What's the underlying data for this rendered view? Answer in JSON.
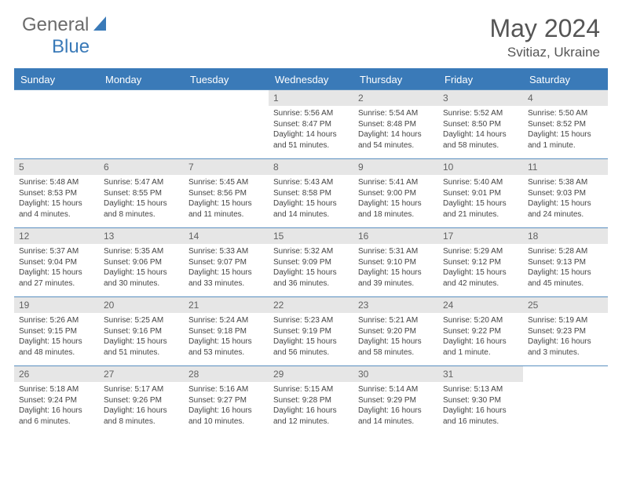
{
  "logo": {
    "text1": "General",
    "text2": "Blue",
    "color1": "#6b6b6b",
    "color2": "#3a7ab8"
  },
  "title": "May 2024",
  "location": "Svitiaz, Ukraine",
  "colors": {
    "header_bg": "#3a7ab8",
    "header_text": "#ffffff",
    "daybar_bg": "#e6e6e6",
    "daybar_text": "#626262",
    "body_text": "#444444",
    "rule": "#5a8fc0"
  },
  "weekdays": [
    "Sunday",
    "Monday",
    "Tuesday",
    "Wednesday",
    "Thursday",
    "Friday",
    "Saturday"
  ],
  "first_weekday_index": 3,
  "days": [
    {
      "n": 1,
      "sunrise": "5:56 AM",
      "sunset": "8:47 PM",
      "daylight": "14 hours and 51 minutes."
    },
    {
      "n": 2,
      "sunrise": "5:54 AM",
      "sunset": "8:48 PM",
      "daylight": "14 hours and 54 minutes."
    },
    {
      "n": 3,
      "sunrise": "5:52 AM",
      "sunset": "8:50 PM",
      "daylight": "14 hours and 58 minutes."
    },
    {
      "n": 4,
      "sunrise": "5:50 AM",
      "sunset": "8:52 PM",
      "daylight": "15 hours and 1 minute."
    },
    {
      "n": 5,
      "sunrise": "5:48 AM",
      "sunset": "8:53 PM",
      "daylight": "15 hours and 4 minutes."
    },
    {
      "n": 6,
      "sunrise": "5:47 AM",
      "sunset": "8:55 PM",
      "daylight": "15 hours and 8 minutes."
    },
    {
      "n": 7,
      "sunrise": "5:45 AM",
      "sunset": "8:56 PM",
      "daylight": "15 hours and 11 minutes."
    },
    {
      "n": 8,
      "sunrise": "5:43 AM",
      "sunset": "8:58 PM",
      "daylight": "15 hours and 14 minutes."
    },
    {
      "n": 9,
      "sunrise": "5:41 AM",
      "sunset": "9:00 PM",
      "daylight": "15 hours and 18 minutes."
    },
    {
      "n": 10,
      "sunrise": "5:40 AM",
      "sunset": "9:01 PM",
      "daylight": "15 hours and 21 minutes."
    },
    {
      "n": 11,
      "sunrise": "5:38 AM",
      "sunset": "9:03 PM",
      "daylight": "15 hours and 24 minutes."
    },
    {
      "n": 12,
      "sunrise": "5:37 AM",
      "sunset": "9:04 PM",
      "daylight": "15 hours and 27 minutes."
    },
    {
      "n": 13,
      "sunrise": "5:35 AM",
      "sunset": "9:06 PM",
      "daylight": "15 hours and 30 minutes."
    },
    {
      "n": 14,
      "sunrise": "5:33 AM",
      "sunset": "9:07 PM",
      "daylight": "15 hours and 33 minutes."
    },
    {
      "n": 15,
      "sunrise": "5:32 AM",
      "sunset": "9:09 PM",
      "daylight": "15 hours and 36 minutes."
    },
    {
      "n": 16,
      "sunrise": "5:31 AM",
      "sunset": "9:10 PM",
      "daylight": "15 hours and 39 minutes."
    },
    {
      "n": 17,
      "sunrise": "5:29 AM",
      "sunset": "9:12 PM",
      "daylight": "15 hours and 42 minutes."
    },
    {
      "n": 18,
      "sunrise": "5:28 AM",
      "sunset": "9:13 PM",
      "daylight": "15 hours and 45 minutes."
    },
    {
      "n": 19,
      "sunrise": "5:26 AM",
      "sunset": "9:15 PM",
      "daylight": "15 hours and 48 minutes."
    },
    {
      "n": 20,
      "sunrise": "5:25 AM",
      "sunset": "9:16 PM",
      "daylight": "15 hours and 51 minutes."
    },
    {
      "n": 21,
      "sunrise": "5:24 AM",
      "sunset": "9:18 PM",
      "daylight": "15 hours and 53 minutes."
    },
    {
      "n": 22,
      "sunrise": "5:23 AM",
      "sunset": "9:19 PM",
      "daylight": "15 hours and 56 minutes."
    },
    {
      "n": 23,
      "sunrise": "5:21 AM",
      "sunset": "9:20 PM",
      "daylight": "15 hours and 58 minutes."
    },
    {
      "n": 24,
      "sunrise": "5:20 AM",
      "sunset": "9:22 PM",
      "daylight": "16 hours and 1 minute."
    },
    {
      "n": 25,
      "sunrise": "5:19 AM",
      "sunset": "9:23 PM",
      "daylight": "16 hours and 3 minutes."
    },
    {
      "n": 26,
      "sunrise": "5:18 AM",
      "sunset": "9:24 PM",
      "daylight": "16 hours and 6 minutes."
    },
    {
      "n": 27,
      "sunrise": "5:17 AM",
      "sunset": "9:26 PM",
      "daylight": "16 hours and 8 minutes."
    },
    {
      "n": 28,
      "sunrise": "5:16 AM",
      "sunset": "9:27 PM",
      "daylight": "16 hours and 10 minutes."
    },
    {
      "n": 29,
      "sunrise": "5:15 AM",
      "sunset": "9:28 PM",
      "daylight": "16 hours and 12 minutes."
    },
    {
      "n": 30,
      "sunrise": "5:14 AM",
      "sunset": "9:29 PM",
      "daylight": "16 hours and 14 minutes."
    },
    {
      "n": 31,
      "sunrise": "5:13 AM",
      "sunset": "9:30 PM",
      "daylight": "16 hours and 16 minutes."
    }
  ],
  "labels": {
    "sunrise": "Sunrise:",
    "sunset": "Sunset:",
    "daylight": "Daylight:"
  }
}
